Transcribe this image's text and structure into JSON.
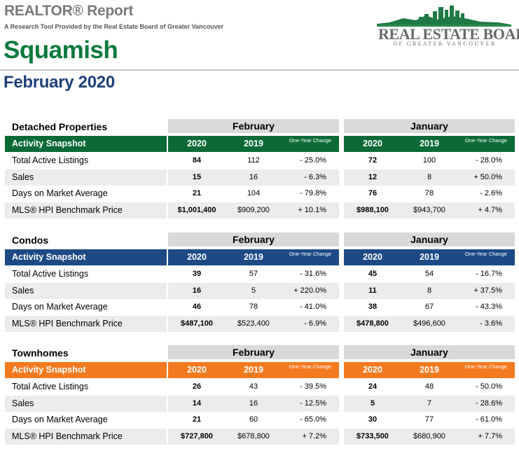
{
  "header": {
    "report_title": "REALTOR® Report",
    "report_subtitle": "A Research Tool Provided by the Real Estate Board of Greater Vancouver",
    "city": "Squamish",
    "period": "February 2020",
    "logo_name": "REAL ESTATE BOARD",
    "logo_tagline": "OF GREATER VANCOUVER"
  },
  "colors": {
    "detached": "#0b6a36",
    "condos": "#1d4a85",
    "townhomes": "#f47a20",
    "month_header_bg": "#d9d9d9",
    "city_title": "#0a7a3c",
    "period_title": "#1e3f7a"
  },
  "sections": [
    {
      "title": "Detached Properties",
      "left_month": "February",
      "right_month": "January",
      "band_label": "Activity Snapshot",
      "col_2020": "2020",
      "col_2019": "2019",
      "col_change": "One-Year Change",
      "rows": [
        {
          "label": "Total Active Listings",
          "l2020": "84",
          "l2019": "112",
          "lchg": "- 25.0%",
          "r2020": "72",
          "r2019": "100",
          "rchg": "- 28.0%"
        },
        {
          "label": "Sales",
          "l2020": "15",
          "l2019": "16",
          "lchg": "- 6.3%",
          "r2020": "12",
          "r2019": "8",
          "rchg": "+ 50.0%"
        },
        {
          "label": "Days on Market Average",
          "l2020": "21",
          "l2019": "104",
          "lchg": "- 79.8%",
          "r2020": "76",
          "r2019": "78",
          "rchg": "- 2.6%"
        },
        {
          "label": "MLS® HPI Benchmark Price",
          "l2020": "$1,001,400",
          "l2019": "$909,200",
          "lchg": "+ 10.1%",
          "r2020": "$988,100",
          "r2019": "$943,700",
          "rchg": "+ 4.7%"
        }
      ]
    },
    {
      "title": "Condos",
      "left_month": "February",
      "right_month": "January",
      "band_label": "Activity Snapshot",
      "col_2020": "2020",
      "col_2019": "2019",
      "col_change": "One-Year Change",
      "rows": [
        {
          "label": "Total Active Listings",
          "l2020": "39",
          "l2019": "57",
          "lchg": "- 31.6%",
          "r2020": "45",
          "r2019": "54",
          "rchg": "- 16.7%"
        },
        {
          "label": "Sales",
          "l2020": "16",
          "l2019": "5",
          "lchg": "+ 220.0%",
          "r2020": "11",
          "r2019": "8",
          "rchg": "+ 37.5%"
        },
        {
          "label": "Days on Market Average",
          "l2020": "46",
          "l2019": "78",
          "lchg": "- 41.0%",
          "r2020": "38",
          "r2019": "67",
          "rchg": "- 43.3%"
        },
        {
          "label": "MLS® HPI Benchmark Price",
          "l2020": "$487,100",
          "l2019": "$523,400",
          "lchg": "- 6.9%",
          "r2020": "$478,800",
          "r2019": "$496,600",
          "rchg": "- 3.6%"
        }
      ]
    },
    {
      "title": "Townhomes",
      "left_month": "February",
      "right_month": "January",
      "band_label": "Activity Snapshot",
      "col_2020": "2020",
      "col_2019": "2019",
      "col_change": "One-Year Change",
      "rows": [
        {
          "label": "Total Active Listings",
          "l2020": "26",
          "l2019": "43",
          "lchg": "- 39.5%",
          "r2020": "24",
          "r2019": "48",
          "rchg": "- 50.0%"
        },
        {
          "label": "Sales",
          "l2020": "14",
          "l2019": "16",
          "lchg": "- 12.5%",
          "r2020": "5",
          "r2019": "7",
          "rchg": "- 28.6%"
        },
        {
          "label": "Days on Market Average",
          "l2020": "21",
          "l2019": "60",
          "lchg": "- 65.0%",
          "r2020": "30",
          "r2019": "77",
          "rchg": "- 61.0%"
        },
        {
          "label": "MLS® HPI Benchmark Price",
          "l2020": "$727,800",
          "l2019": "$678,800",
          "lchg": "+ 7.2%",
          "r2020": "$733,500",
          "r2019": "$680,900",
          "rchg": "+ 7.7%"
        }
      ]
    }
  ]
}
